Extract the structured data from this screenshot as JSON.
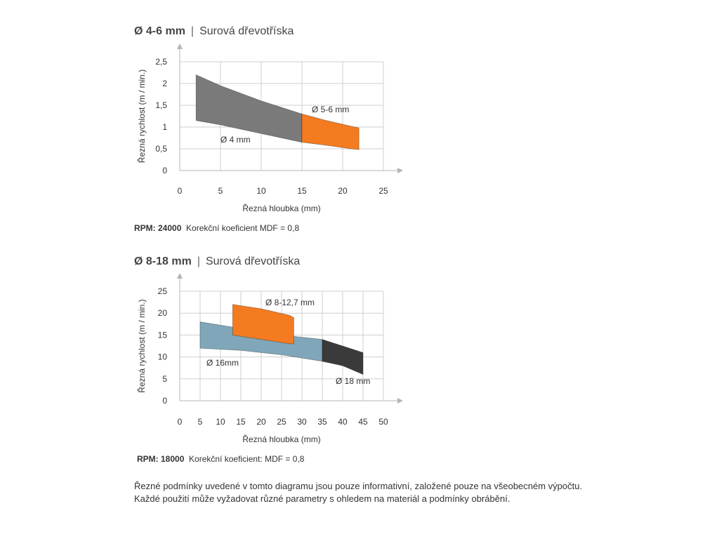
{
  "charts": [
    {
      "title_prefix": "Ø 4-6 mm",
      "title_separator": "|",
      "title_rest": "Surová dřevotříska",
      "caption_bold": "RPM: 24000",
      "caption_rest": "Korekční koeficient MDF = 0,8"
    },
    {
      "title_prefix": "Ø 8-18 mm",
      "title_separator": "|",
      "title_rest": "Surová dřevotříska",
      "caption_bold": "RPM: 18000",
      "caption_rest": "Korekční koeficient: MDF = 0,8"
    }
  ],
  "footnote": [
    "Řezné podmínky uvedené v tomto diagramu jsou pouze informativní, založené pouze na všeobecném výpočtu.",
    "Každé použití může vyžadovat různé parametry s ohledem na materiál a podmínky obrábění."
  ],
  "chart_data": [
    {
      "type": "area",
      "xlabel": "Řezná hloubka (mm)",
      "ylabel": "Řezná rychlost (m / min.)",
      "xlim": [
        0,
        25
      ],
      "ylim": [
        0,
        2.5
      ],
      "x_ticks": [
        "0",
        "5",
        "10",
        "15",
        "20",
        "25"
      ],
      "y_ticks": [
        "0",
        "0,5",
        "1",
        "1,5",
        "2",
        "2,5"
      ],
      "grid": true,
      "series": [
        {
          "name": "Ø 4 mm",
          "color": "#7a7a7a",
          "upper": [
            [
              2,
              2.2
            ],
            [
              5,
              1.95
            ],
            [
              10,
              1.6
            ],
            [
              15,
              1.3
            ]
          ],
          "lower": [
            [
              2,
              1.15
            ],
            [
              5,
              1.05
            ],
            [
              10,
              0.85
            ],
            [
              15,
              0.65
            ]
          ]
        },
        {
          "name": "Ø 5-6 mm",
          "color": "#f47b20",
          "upper": [
            [
              15,
              1.3
            ],
            [
              18,
              1.15
            ],
            [
              21,
              1.02
            ],
            [
              22,
              0.98
            ]
          ],
          "lower": [
            [
              15,
              0.65
            ],
            [
              18,
              0.58
            ],
            [
              21,
              0.5
            ],
            [
              22,
              0.48
            ]
          ]
        }
      ]
    },
    {
      "type": "area",
      "xlabel": "Řezná hloubka (mm)",
      "ylabel": "Řezná rychlost (m / min.)",
      "xlim": [
        0,
        50
      ],
      "ylim": [
        0,
        25
      ],
      "x_ticks": [
        "0",
        "5",
        "10",
        "15",
        "20",
        "25",
        "30",
        "35",
        "40",
        "45",
        "50"
      ],
      "y_ticks": [
        "0",
        "5",
        "10",
        "15",
        "20",
        "25"
      ],
      "grid": true,
      "series": [
        {
          "name": "Ø 16mm",
          "color": "#7fa7b9",
          "upper": [
            [
              5,
              18
            ],
            [
              15,
              16.5
            ],
            [
              25,
              15
            ],
            [
              35,
              14
            ]
          ],
          "lower": [
            [
              5,
              12
            ],
            [
              15,
              11.5
            ],
            [
              25,
              10.5
            ],
            [
              35,
              9
            ]
          ]
        },
        {
          "name": "Ø 18 mm",
          "color": "#3a3a3a",
          "upper": [
            [
              35,
              14
            ],
            [
              40,
              12.5
            ],
            [
              45,
              11
            ]
          ],
          "lower": [
            [
              35,
              9
            ],
            [
              40,
              8
            ],
            [
              45,
              6
            ]
          ]
        },
        {
          "name": "Ø 8-12,7 mm",
          "color": "#f47b20",
          "upper": [
            [
              13,
              22
            ],
            [
              20,
              21
            ],
            [
              27,
              19.5
            ],
            [
              28,
              19
            ]
          ],
          "lower": [
            [
              13,
              15
            ],
            [
              20,
              14
            ],
            [
              27,
              13
            ],
            [
              28,
              13
            ]
          ]
        }
      ]
    }
  ]
}
